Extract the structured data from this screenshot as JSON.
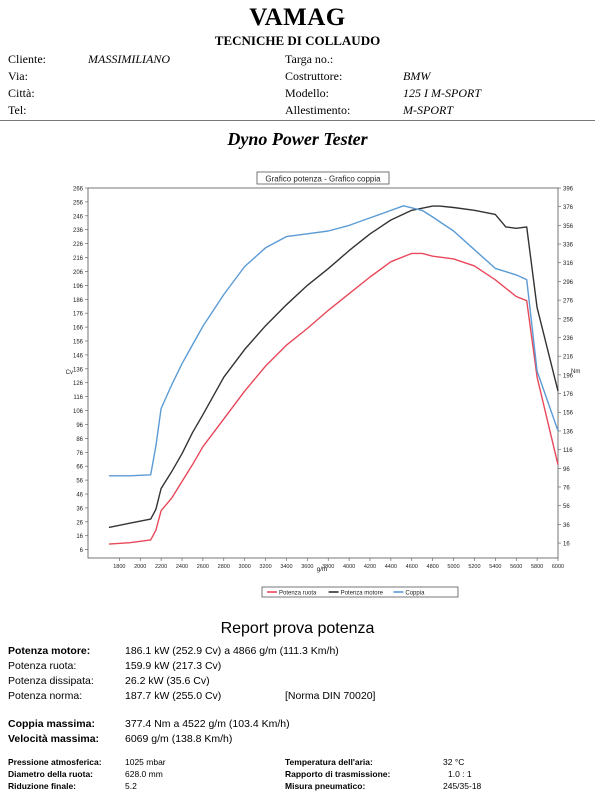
{
  "header": {
    "brand": "VAMAG",
    "subtitle": "TECNICHE DI COLLAUDO"
  },
  "customer": {
    "cliente_label": "Cliente:",
    "cliente_value": "MASSIMILIANO",
    "via_label": "Via:",
    "citta_label": "Città:",
    "tel_label": "Tel:"
  },
  "vehicle": {
    "targa_label": "Targa no.:",
    "costruttore_label": "Costruttore:",
    "costruttore_value": "BMW",
    "modello_label": "Modello:",
    "modello_value": "125 I M-SPORT",
    "allestimento_label": "Allestimento:",
    "allestimento_value": "M-SPORT"
  },
  "section_title": "Dyno Power Tester",
  "chart_data": {
    "type": "line",
    "title": "Grafico potenza - Grafico coppia",
    "xlabel": "g/m",
    "ylabel_left": "Cv",
    "ylabel_right": "Nm",
    "xlim": [
      1500,
      6000
    ],
    "ylim_left": [
      0,
      266
    ],
    "ylim_right": [
      0,
      396
    ],
    "x_ticks": [
      1800,
      2000,
      2200,
      2400,
      2600,
      2800,
      3000,
      3200,
      3400,
      3600,
      3800,
      4000,
      4200,
      4400,
      4600,
      4800,
      5000,
      5200,
      5400,
      5600,
      5800,
      6000
    ],
    "y_ticks_left": [
      6,
      16,
      26,
      36,
      46,
      56,
      66,
      76,
      86,
      96,
      106,
      116,
      126,
      136,
      146,
      156,
      166,
      176,
      186,
      196,
      206,
      216,
      226,
      236,
      246,
      256,
      266
    ],
    "y_ticks_right": [
      16,
      36,
      56,
      76,
      96,
      116,
      136,
      156,
      176,
      196,
      216,
      236,
      256,
      276,
      296,
      316,
      336,
      356,
      376,
      396
    ],
    "grid": false,
    "legend_position": "bottom",
    "series": [
      {
        "name": "Potenza ruota",
        "color": "#e8485a",
        "axis": "left",
        "x": [
          1700,
          1900,
          2100,
          2150,
          2200,
          2300,
          2400,
          2500,
          2600,
          2800,
          3000,
          3200,
          3400,
          3600,
          3800,
          4000,
          4200,
          4400,
          4600,
          4700,
          4800,
          5000,
          5200,
          5400,
          5600,
          5700,
          5800,
          6000
        ],
        "y": [
          10,
          11,
          13,
          20,
          34,
          43,
          55,
          67,
          80,
          100,
          120,
          138,
          153,
          165,
          178,
          190,
          202,
          213,
          219,
          219,
          217,
          215,
          210,
          200,
          188,
          185,
          130,
          67
        ]
      },
      {
        "name": "Potenza motore",
        "color": "#333333",
        "axis": "left",
        "x": [
          1700,
          1900,
          2100,
          2150,
          2200,
          2300,
          2400,
          2500,
          2600,
          2800,
          3000,
          3200,
          3400,
          3600,
          3800,
          4000,
          4200,
          4400,
          4600,
          4800,
          4866,
          5000,
          5200,
          5400,
          5500,
          5600,
          5700,
          5800,
          6000
        ],
        "y": [
          22,
          25,
          28,
          35,
          50,
          62,
          75,
          90,
          103,
          130,
          150,
          167,
          182,
          196,
          208,
          221,
          233,
          243,
          250,
          253,
          253,
          252,
          250,
          247,
          238,
          237,
          238,
          180,
          120
        ]
      },
      {
        "name": "Coppia",
        "color": "#5b9bd5",
        "axis": "right",
        "x": [
          1700,
          1900,
          2100,
          2150,
          2200,
          2300,
          2400,
          2500,
          2600,
          2800,
          3000,
          3200,
          3400,
          3600,
          3800,
          4000,
          4200,
          4400,
          4522,
          4700,
          4800,
          5000,
          5200,
          5400,
          5600,
          5700,
          5800,
          6000
        ],
        "y": [
          88,
          88,
          89,
          120,
          160,
          185,
          208,
          228,
          248,
          282,
          312,
          332,
          344,
          347,
          350,
          356,
          364,
          372,
          377,
          372,
          365,
          350,
          330,
          310,
          303,
          298,
          200,
          136
        ]
      }
    ]
  },
  "report": {
    "title": "Report prova potenza",
    "potenza_motore_label": "Potenza motore:",
    "potenza_motore_value": "186.1 kW (252.9 Cv) a 4866 g/m (111.3 Km/h)",
    "potenza_ruota_label": "Potenza ruota:",
    "potenza_ruota_value": "159.9 kW (217.3 Cv)",
    "potenza_dissipata_label": "Potenza dissipata:",
    "potenza_dissipata_value": "26.2 kW (35.6 Cv)",
    "potenza_norma_label": "Potenza norma:",
    "potenza_norma_value": "187.7 kW (255.0 Cv)",
    "norma_value": "[Norma DIN 70020]",
    "coppia_massima_label": "Coppia massima:",
    "coppia_massima_value": "377.4 Nm a 4522 g/m (103.4 Km/h)",
    "velocita_massima_label": "Velocità massima:",
    "velocita_massima_value": "6069 g/m (138.8 Km/h)"
  },
  "specs": {
    "pressione_label": "Pressione atmosferica:",
    "pressione_value": "1025 mbar",
    "diametro_label": "Diametro della ruota:",
    "diametro_value": "628.0 mm",
    "riduzione_label": "Riduzione finale:",
    "riduzione_value": "5.2",
    "temperatura_label": "Temperatura dell'aria:",
    "temperatura_value": "32 °C",
    "rapporto_label": "Rapporto di trasmissione:",
    "rapporto_value": "1.0 : 1",
    "misura_label": "Misura pneumatico:",
    "misura_value": "245/35-18"
  }
}
